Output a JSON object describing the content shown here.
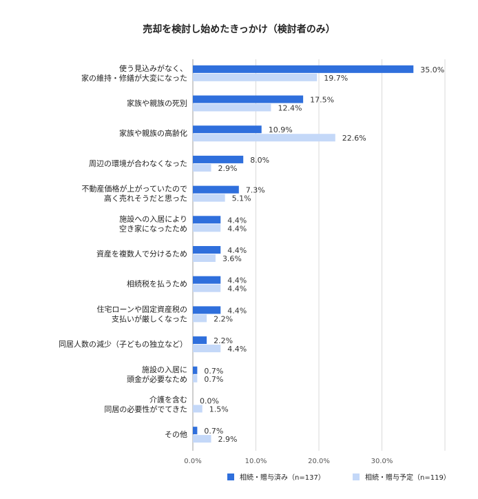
{
  "chart_data": {
    "type": "bar",
    "orientation": "horizontal",
    "title": "売却を検討し始めたきっかけ（検討者のみ）",
    "categories": [
      [
        "使う見込みがなく、",
        "家の維持・修繕が大変になった"
      ],
      [
        "家族や親族の死別"
      ],
      [
        "家族や親族の高齢化"
      ],
      [
        "周辺の環境が合わなくなった"
      ],
      [
        "不動産価格が上がっていたので",
        "高く売れそうだと思った"
      ],
      [
        "施設への入居により",
        "空き家になったため"
      ],
      [
        "資産を複数人で分けるため"
      ],
      [
        "相続税を払うため"
      ],
      [
        "住宅ローンや固定資産税の",
        "支払いが厳しくなった"
      ],
      [
        "同居人数の減少（子どもの独立など）"
      ],
      [
        "施設の入居に",
        "頭金が必要なため"
      ],
      [
        "介護を含む",
        "同居の必要性がでてきた"
      ],
      [
        "その他"
      ]
    ],
    "series": [
      {
        "name": "相続・贈与済み（n=137）",
        "color": "#2f6fdc",
        "values": [
          35.0,
          17.5,
          10.9,
          8.0,
          7.3,
          4.4,
          4.4,
          4.4,
          4.4,
          2.2,
          0.7,
          0.0,
          0.7
        ],
        "labels": [
          "35.0%",
          "17.5%",
          "10.9%",
          "8.0%",
          "7.3%",
          "4.4%",
          "4.4%",
          "4.4%",
          "4.4%",
          "2.2%",
          "0.7%",
          "0.0%",
          "0.7%"
        ]
      },
      {
        "name": "相続・贈与予定（n=119）",
        "color": "#c4d8f8",
        "values": [
          19.7,
          12.4,
          22.6,
          2.9,
          5.1,
          4.4,
          3.6,
          4.4,
          2.2,
          4.4,
          0.7,
          1.5,
          2.9
        ],
        "labels": [
          "19.7%",
          "12.4%",
          "22.6%",
          "2.9%",
          "5.1%",
          "4.4%",
          "3.6%",
          "4.4%",
          "2.2%",
          "4.4%",
          "0.7%",
          "1.5%",
          "2.9%"
        ]
      }
    ],
    "x_ticks": [
      0,
      10,
      20,
      30
    ],
    "x_tick_labels": [
      "0.0%",
      "10.0%",
      "20.0%",
      "30.0%"
    ],
    "xlim": [
      0,
      40
    ],
    "grid": true,
    "legend_position": "bottom"
  }
}
